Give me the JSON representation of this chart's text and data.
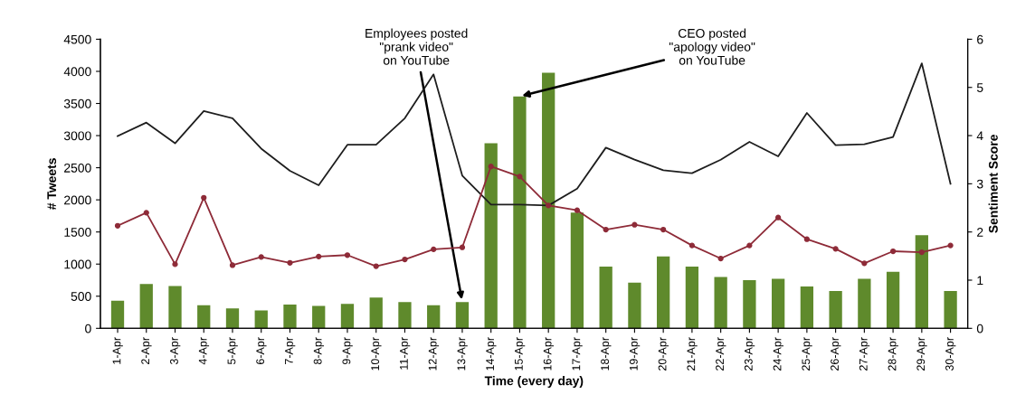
{
  "chart_data": {
    "type": "bar",
    "xlabel": "Time (every day)",
    "ylabel": "# Tweets",
    "y2label": "Sentiment Score",
    "categories": [
      "1-Apr",
      "2-Apr",
      "3-Apr",
      "4-Apr",
      "5-Apr",
      "6-Apr",
      "7-Apr",
      "8-Apr",
      "9-Apr",
      "10-Apr",
      "11-Apr",
      "12-Apr",
      "13-Apr",
      "14-Apr",
      "15-Apr",
      "16-Apr",
      "17-Apr",
      "18-Apr",
      "19-Apr",
      "20-Apr",
      "21-Apr",
      "22-Apr",
      "23-Apr",
      "24-Apr",
      "25-Apr",
      "26-Apr",
      "27-Apr",
      "28-Apr",
      "29-Apr",
      "30-Apr"
    ],
    "series": [
      {
        "color": "#5f8a2c",
        "values": [
          430,
          690,
          660,
          360,
          310,
          280,
          370,
          350,
          380,
          480,
          410,
          360,
          410,
          2880,
          3610,
          3980,
          1800,
          960,
          710,
          1120,
          960,
          800,
          750,
          770,
          650,
          580,
          770,
          880,
          1450,
          580
        ]
      },
      {
        "type": "line",
        "axis": "y2",
        "color": "#1e1e1e",
        "marker": "none",
        "values": [
          3.99,
          4.27,
          3.84,
          4.51,
          4.36,
          3.73,
          3.27,
          2.97,
          3.81,
          3.81,
          4.36,
          5.27,
          3.17,
          2.57,
          2.57,
          2.55,
          2.9,
          3.75,
          3.5,
          3.28,
          3.22,
          3.5,
          3.87,
          3.57,
          4.47,
          3.8,
          3.82,
          3.97,
          5.5,
          3.0
        ]
      },
      {
        "type": "line",
        "axis": "y2",
        "color": "#8e2b38",
        "marker": "circle",
        "values": [
          2.13,
          2.4,
          1.33,
          2.71,
          1.31,
          1.48,
          1.36,
          1.49,
          1.52,
          1.29,
          1.43,
          1.64,
          1.68,
          3.36,
          3.15,
          2.55,
          2.45,
          2.05,
          2.15,
          2.05,
          1.72,
          1.45,
          1.72,
          2.3,
          1.85,
          1.65,
          1.35,
          1.6,
          1.58,
          1.72
        ]
      }
    ],
    "ylim": [
      0,
      4500
    ],
    "yticks": [
      0,
      500,
      1000,
      1500,
      2000,
      2500,
      3000,
      3500,
      4000,
      4500
    ],
    "y2lim": [
      0,
      6
    ],
    "y2ticks": [
      0,
      1,
      2,
      3,
      4,
      5,
      6
    ],
    "annotations": [
      {
        "text": "Employees posted\n\"prank video\"\non YouTube",
        "x": "13-Apr",
        "y": 410
      },
      {
        "text": "CEO posted\n\"apology video\"\non YouTube",
        "x": "15-Apr",
        "y": 3610
      }
    ],
    "grid": false,
    "legend": false
  }
}
